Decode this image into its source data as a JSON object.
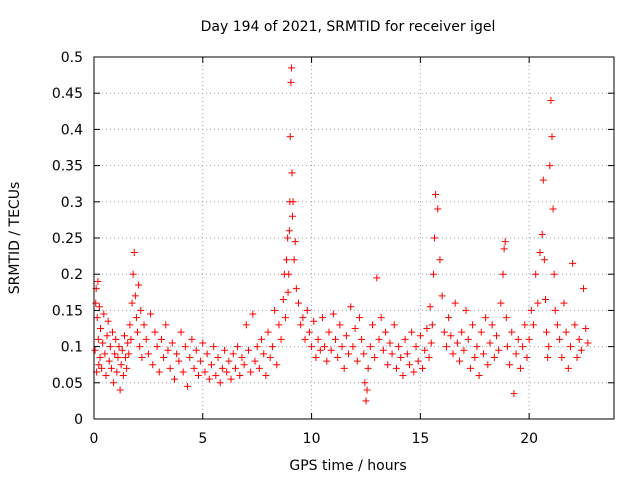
{
  "chart_data": {
    "type": "scatter",
    "title": "Day 194 of 2021, SRMTID for receiver igel",
    "xlabel": "GPS time / hours",
    "ylabel": "SRMTID / TECUs",
    "xlim": [
      0,
      23.9
    ],
    "ylim": [
      0,
      0.5
    ],
    "x_ticks": [
      0,
      5,
      10,
      15,
      20
    ],
    "x_tick_labels": [
      "0",
      "5",
      "10",
      "15",
      "20"
    ],
    "y_ticks": [
      0,
      0.05,
      0.1,
      0.15,
      0.2,
      0.25,
      0.3,
      0.35,
      0.4,
      0.45,
      0.5
    ],
    "y_tick_labels": [
      "0",
      "0.05",
      "0.1",
      "0.15",
      "0.2",
      "0.25",
      "0.3",
      "0.35",
      "0.4",
      "0.45",
      "0.5"
    ],
    "grid": true,
    "marker": "+",
    "color": "#ff0000",
    "series": [
      {
        "name": "",
        "x": [
          0.05,
          0.08,
          0.1,
          0.12,
          0.15,
          0.18,
          0.2,
          0.22,
          0.25,
          0.28,
          0.3,
          0.35,
          0.4,
          0.45,
          0.5,
          0.55,
          0.6,
          0.65,
          0.7,
          0.75,
          0.8,
          0.85,
          0.9,
          0.95,
          1.0,
          1.05,
          1.1,
          1.15,
          1.2,
          1.25,
          1.3,
          1.35,
          1.4,
          1.45,
          1.5,
          1.55,
          1.6,
          1.65,
          1.7,
          1.75,
          1.8,
          1.85,
          1.9,
          1.95,
          2.0,
          2.05,
          2.1,
          2.15,
          2.2,
          2.3,
          2.4,
          2.5,
          2.6,
          2.7,
          2.8,
          2.9,
          3.0,
          3.1,
          3.2,
          3.3,
          3.4,
          3.5,
          3.6,
          3.7,
          3.8,
          3.9,
          4.0,
          4.1,
          4.2,
          4.3,
          4.4,
          4.5,
          4.6,
          4.7,
          4.8,
          4.9,
          5.0,
          5.1,
          5.2,
          5.3,
          5.4,
          5.5,
          5.6,
          5.7,
          5.8,
          5.9,
          6.0,
          6.1,
          6.2,
          6.3,
          6.4,
          6.5,
          6.6,
          6.7,
          6.8,
          6.9,
          7.0,
          7.1,
          7.2,
          7.3,
          7.4,
          7.5,
          7.6,
          7.7,
          7.8,
          7.9,
          8.0,
          8.1,
          8.2,
          8.3,
          8.4,
          8.5,
          8.6,
          8.7,
          8.75,
          8.8,
          8.85,
          8.9,
          8.92,
          8.95,
          8.98,
          9.0,
          9.02,
          9.05,
          9.08,
          9.1,
          9.12,
          9.15,
          9.2,
          9.25,
          9.3,
          9.4,
          9.5,
          9.6,
          9.7,
          9.8,
          9.9,
          10.0,
          10.1,
          10.2,
          10.3,
          10.4,
          10.5,
          10.6,
          10.7,
          10.8,
          10.9,
          11.0,
          11.1,
          11.2,
          11.3,
          11.4,
          11.5,
          11.6,
          11.7,
          11.8,
          11.9,
          12.0,
          12.1,
          12.2,
          12.3,
          12.4,
          12.45,
          12.5,
          12.55,
          12.6,
          12.7,
          12.8,
          12.9,
          13.0,
          13.1,
          13.2,
          13.3,
          13.4,
          13.5,
          13.6,
          13.7,
          13.8,
          13.9,
          14.0,
          14.1,
          14.2,
          14.3,
          14.4,
          14.5,
          14.6,
          14.7,
          14.8,
          14.9,
          15.0,
          15.1,
          15.2,
          15.3,
          15.4,
          15.45,
          15.5,
          15.55,
          15.6,
          15.65,
          15.7,
          15.8,
          15.9,
          16.0,
          16.1,
          16.2,
          16.3,
          16.4,
          16.5,
          16.6,
          16.7,
          16.8,
          16.9,
          17.0,
          17.1,
          17.2,
          17.3,
          17.4,
          17.5,
          17.6,
          17.7,
          17.8,
          17.9,
          18.0,
          18.1,
          18.2,
          18.3,
          18.4,
          18.5,
          18.6,
          18.7,
          18.8,
          18.85,
          18.9,
          18.95,
          19.0,
          19.1,
          19.2,
          19.3,
          19.4,
          19.5,
          19.6,
          19.7,
          19.8,
          19.9,
          20.0,
          20.1,
          20.2,
          20.3,
          20.4,
          20.5,
          20.6,
          20.65,
          20.7,
          20.75,
          20.8,
          20.85,
          20.9,
          20.95,
          21.0,
          21.05,
          21.1,
          21.15,
          21.2,
          21.3,
          21.4,
          21.5,
          21.6,
          21.7,
          21.8,
          21.9,
          22.0,
          22.1,
          22.2,
          22.3,
          22.4,
          22.5,
          22.6,
          22.7
        ],
        "y": [
          0.095,
          0.16,
          0.18,
          0.065,
          0.14,
          0.19,
          0.11,
          0.075,
          0.155,
          0.085,
          0.125,
          0.07,
          0.105,
          0.145,
          0.09,
          0.06,
          0.115,
          0.135,
          0.08,
          0.1,
          0.07,
          0.12,
          0.05,
          0.09,
          0.11,
          0.065,
          0.085,
          0.1,
          0.04,
          0.075,
          0.095,
          0.06,
          0.115,
          0.085,
          0.07,
          0.105,
          0.09,
          0.13,
          0.11,
          0.16,
          0.2,
          0.23,
          0.17,
          0.14,
          0.12,
          0.185,
          0.1,
          0.15,
          0.085,
          0.13,
          0.11,
          0.09,
          0.145,
          0.075,
          0.12,
          0.1,
          0.065,
          0.11,
          0.085,
          0.13,
          0.095,
          0.07,
          0.105,
          0.055,
          0.09,
          0.08,
          0.12,
          0.065,
          0.1,
          0.045,
          0.085,
          0.11,
          0.07,
          0.095,
          0.06,
          0.08,
          0.105,
          0.065,
          0.09,
          0.055,
          0.075,
          0.1,
          0.06,
          0.085,
          0.05,
          0.07,
          0.095,
          0.065,
          0.08,
          0.055,
          0.09,
          0.07,
          0.1,
          0.06,
          0.085,
          0.075,
          0.13,
          0.095,
          0.065,
          0.145,
          0.08,
          0.1,
          0.07,
          0.11,
          0.09,
          0.06,
          0.12,
          0.085,
          0.1,
          0.15,
          0.075,
          0.13,
          0.11,
          0.165,
          0.2,
          0.14,
          0.22,
          0.25,
          0.175,
          0.2,
          0.26,
          0.3,
          0.39,
          0.465,
          0.485,
          0.34,
          0.28,
          0.3,
          0.22,
          0.245,
          0.18,
          0.16,
          0.13,
          0.14,
          0.11,
          0.15,
          0.12,
          0.1,
          0.135,
          0.085,
          0.11,
          0.095,
          0.14,
          0.1,
          0.08,
          0.12,
          0.095,
          0.145,
          0.11,
          0.085,
          0.13,
          0.1,
          0.07,
          0.115,
          0.09,
          0.155,
          0.1,
          0.125,
          0.08,
          0.14,
          0.11,
          0.09,
          0.05,
          0.025,
          0.04,
          0.07,
          0.1,
          0.13,
          0.085,
          0.195,
          0.11,
          0.14,
          0.095,
          0.12,
          0.075,
          0.105,
          0.09,
          0.13,
          0.07,
          0.1,
          0.085,
          0.06,
          0.11,
          0.09,
          0.075,
          0.12,
          0.065,
          0.1,
          0.08,
          0.115,
          0.07,
          0.095,
          0.125,
          0.085,
          0.155,
          0.105,
          0.13,
          0.2,
          0.25,
          0.31,
          0.29,
          0.22,
          0.17,
          0.12,
          0.1,
          0.14,
          0.115,
          0.09,
          0.16,
          0.105,
          0.08,
          0.12,
          0.095,
          0.15,
          0.11,
          0.07,
          0.13,
          0.085,
          0.1,
          0.06,
          0.12,
          0.09,
          0.14,
          0.075,
          0.105,
          0.13,
          0.085,
          0.115,
          0.095,
          0.16,
          0.2,
          0.235,
          0.245,
          0.14,
          0.1,
          0.075,
          0.12,
          0.035,
          0.09,
          0.11,
          0.07,
          0.1,
          0.13,
          0.085,
          0.11,
          0.15,
          0.13,
          0.2,
          0.16,
          0.23,
          0.255,
          0.33,
          0.22,
          0.165,
          0.12,
          0.085,
          0.1,
          0.35,
          0.44,
          0.39,
          0.29,
          0.2,
          0.15,
          0.13,
          0.11,
          0.085,
          0.16,
          0.12,
          0.07,
          0.1,
          0.215,
          0.13,
          0.085,
          0.11,
          0.095,
          0.18,
          0.125,
          0.105
        ]
      }
    ]
  }
}
